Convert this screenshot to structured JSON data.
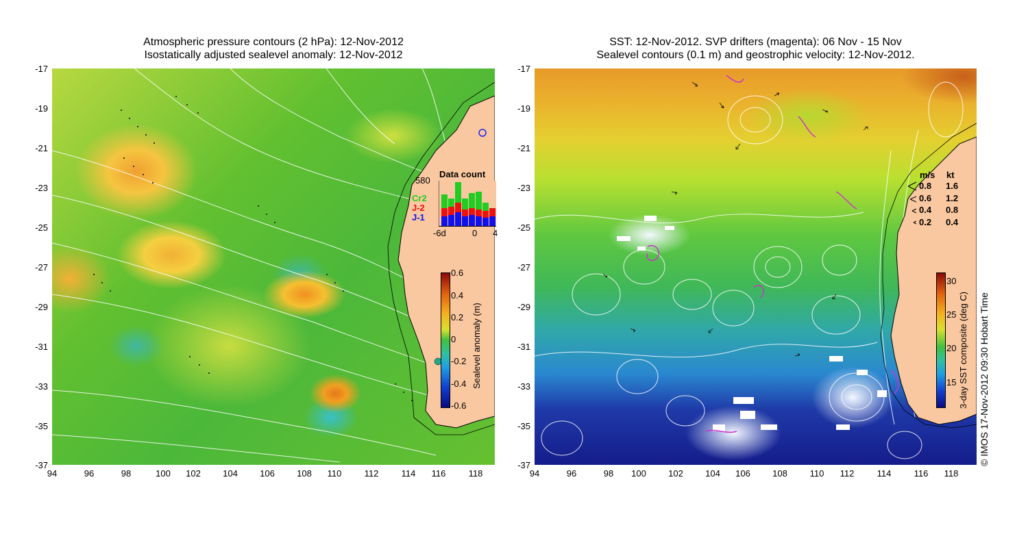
{
  "left_panel": {
    "title_line1": "Atmospheric pressure contours (2 hPa): 12-Nov-2012",
    "title_line2": "Isostatically adjusted sealevel anomaly: 12-Nov-2012",
    "y_ticks": [
      "-17",
      "-19",
      "-21",
      "-23",
      "-25",
      "-27",
      "-29",
      "-31",
      "-33",
      "-35",
      "-37"
    ],
    "x_ticks": [
      "94",
      "96",
      "98",
      "100",
      "102",
      "104",
      "106",
      "108",
      "110",
      "112",
      "114",
      "116",
      "118"
    ],
    "colorbar": {
      "label": "Sealevel anomaly (m)",
      "ticks": [
        "0.6",
        "0.4",
        "0.2",
        "0",
        "-0.2",
        "-0.4",
        "-0.6"
      ]
    },
    "point_label": "580",
    "inset": {
      "title": "Data count",
      "series": [
        {
          "name": "Cr2",
          "color": "#22cc22"
        },
        {
          "name": "J-2",
          "color": "#ee1111"
        },
        {
          "name": "J-1",
          "color": "#1111ee"
        }
      ],
      "x_ticks": [
        "-6d",
        "0",
        "4"
      ]
    }
  },
  "right_panel": {
    "title_line1": "SST: 12-Nov-2012. SVP drifters (magenta): 06 Nov - 15 Nov",
    "title_line2": "Sealevel contours (0.1 m) and geostrophic velocity: 12-Nov-2012.",
    "y_ticks": [
      "-17",
      "-19",
      "-21",
      "-23",
      "-25",
      "-27",
      "-29",
      "-31",
      "-33",
      "-35",
      "-37"
    ],
    "x_ticks": [
      "94",
      "96",
      "98",
      "100",
      "102",
      "104",
      "106",
      "108",
      "110",
      "112",
      "114",
      "116",
      "118"
    ],
    "colorbar": {
      "label": "3-day SST composite (deg C)",
      "ticks": [
        "30",
        "25",
        "20",
        "15"
      ]
    },
    "velocity_legend": {
      "header_ms": "m/s",
      "header_kt": "kt",
      "rows": [
        {
          "ms": "0.8",
          "kt": "1.6"
        },
        {
          "ms": "0.6",
          "kt": "1.2"
        },
        {
          "ms": "0.4",
          "kt": "0.8"
        },
        {
          "ms": "0.2",
          "kt": "0.4"
        }
      ]
    }
  },
  "copyright": "© IMOS 17-Nov-2012 09:30 Hobart Time",
  "colors": {
    "land": "#fac8a0",
    "contour": "#ffffff",
    "drifters": "#cc33cc"
  }
}
